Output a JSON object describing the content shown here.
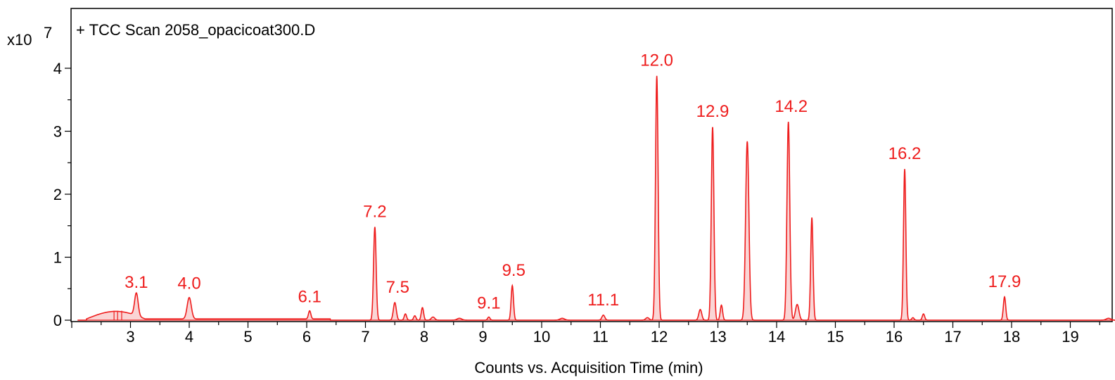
{
  "chart_data": {
    "type": "line",
    "title": "+ TCC Scan 2058_opacicoat300.D",
    "xlabel": "Counts vs. Acquisition Time (min)",
    "ylabel": "",
    "y_multiplier": "x10",
    "y_exponent": "7",
    "xlim": [
      2.0,
      19.8
    ],
    "ylim": [
      0,
      4.25
    ],
    "x_ticks": [
      3,
      4,
      5,
      6,
      7,
      8,
      9,
      10,
      11,
      12,
      13,
      14,
      15,
      16,
      17,
      18,
      19
    ],
    "y_ticks": [
      0,
      1,
      2,
      3,
      4
    ],
    "grid": false,
    "color": "#ee1c1c",
    "fill_color": "#f6b3b3",
    "peaks": [
      {
        "x": 3.1,
        "y": 0.36,
        "width": 0.03,
        "label": "3.1"
      },
      {
        "x": 4.0,
        "y": 0.34,
        "width": 0.035,
        "label": "4.0"
      },
      {
        "x": 6.05,
        "y": 0.13,
        "width": 0.02,
        "label": "6.1"
      },
      {
        "x": 7.16,
        "y": 1.48,
        "width": 0.022,
        "label": "7.2"
      },
      {
        "x": 7.5,
        "y": 0.28,
        "width": 0.025,
        "label": "7.5"
      },
      {
        "x": 7.68,
        "y": 0.1,
        "width": 0.02,
        "label": ""
      },
      {
        "x": 7.84,
        "y": 0.07,
        "width": 0.02,
        "label": ""
      },
      {
        "x": 7.97,
        "y": 0.2,
        "width": 0.02,
        "label": ""
      },
      {
        "x": 8.15,
        "y": 0.05,
        "width": 0.03,
        "label": ""
      },
      {
        "x": 8.6,
        "y": 0.03,
        "width": 0.04,
        "label": ""
      },
      {
        "x": 9.1,
        "y": 0.05,
        "width": 0.02,
        "label": "9.1"
      },
      {
        "x": 9.5,
        "y": 0.55,
        "width": 0.02,
        "label": "9.5"
      },
      {
        "x": 10.35,
        "y": 0.03,
        "width": 0.04,
        "label": ""
      },
      {
        "x": 11.05,
        "y": 0.08,
        "width": 0.025,
        "label": "11.1"
      },
      {
        "x": 11.8,
        "y": 0.04,
        "width": 0.03,
        "label": ""
      },
      {
        "x": 11.96,
        "y": 3.88,
        "width": 0.022,
        "label": "12.0"
      },
      {
        "x": 12.7,
        "y": 0.17,
        "width": 0.025,
        "label": ""
      },
      {
        "x": 12.91,
        "y": 3.07,
        "width": 0.022,
        "label": "12.9"
      },
      {
        "x": 13.06,
        "y": 0.24,
        "width": 0.02,
        "label": ""
      },
      {
        "x": 13.5,
        "y": 2.84,
        "width": 0.028,
        "label": ""
      },
      {
        "x": 14.2,
        "y": 3.15,
        "width": 0.024,
        "label": "14.2"
      },
      {
        "x": 14.35,
        "y": 0.25,
        "width": 0.03,
        "label": ""
      },
      {
        "x": 14.6,
        "y": 1.63,
        "width": 0.02,
        "label": ""
      },
      {
        "x": 16.18,
        "y": 2.4,
        "width": 0.02,
        "label": "16.2"
      },
      {
        "x": 16.32,
        "y": 0.04,
        "width": 0.02,
        "label": ""
      },
      {
        "x": 16.5,
        "y": 0.1,
        "width": 0.02,
        "label": ""
      },
      {
        "x": 17.88,
        "y": 0.37,
        "width": 0.02,
        "label": "17.9"
      },
      {
        "x": 19.65,
        "y": 0.03,
        "width": 0.04,
        "label": ""
      }
    ]
  }
}
